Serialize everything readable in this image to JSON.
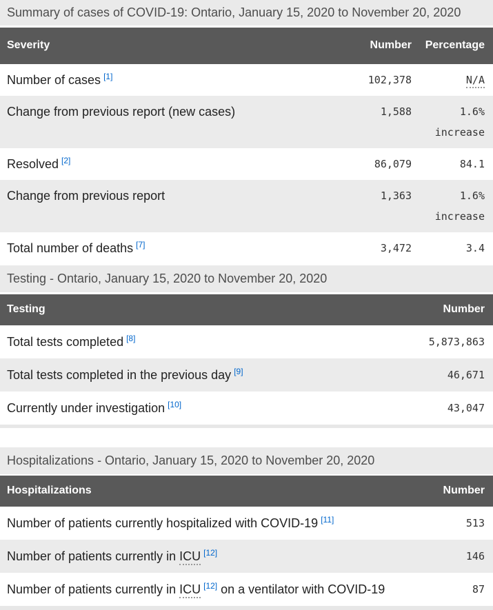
{
  "colors": {
    "table_header_bg": "#595959",
    "caption_bg": "#eaeaea",
    "zebra_row_bg": "#ebebeb",
    "footnote_link": "#0066cc",
    "label_text": "#222222",
    "number_text": "#333333"
  },
  "summary": {
    "caption": "Summary of cases of COVID-19: Ontario, January 15, 2020 to November 20, 2020",
    "columns": {
      "severity": "Severity",
      "number": "Number",
      "percentage": "Percentage"
    },
    "rows": [
      {
        "label": "Number of cases",
        "footnote": "[1]",
        "number": "102,378",
        "percentage": "N/A"
      },
      {
        "label": "Change from previous report (new cases)",
        "number": "1,588",
        "percentage": "1.6%",
        "percentage_note": "increase"
      },
      {
        "label": "Resolved",
        "footnote": "[2]",
        "number": "86,079",
        "percentage": "84.1"
      },
      {
        "label": "Change from previous report",
        "number": "1,363",
        "percentage": "1.6%",
        "percentage_note": "increase"
      },
      {
        "label": "Total number of deaths",
        "footnote": "[7]",
        "number": "3,472",
        "percentage": "3.4"
      }
    ]
  },
  "testing": {
    "caption": "Testing - Ontario, January 15, 2020 to November 20, 2020",
    "columns": {
      "testing": "Testing",
      "number": "Number"
    },
    "rows": [
      {
        "label": "Total tests completed",
        "footnote": "[8]",
        "number": "5,873,863"
      },
      {
        "label": "Total tests completed in the previous day",
        "footnote": "[9]",
        "number": "46,671"
      },
      {
        "label": "Currently under investigation",
        "footnote": "[10]",
        "number": "43,047"
      }
    ]
  },
  "hospitalizations": {
    "caption": "Hospitalizations - Ontario, January 15, 2020 to November 20, 2020",
    "columns": {
      "hospitalizations": "Hospitalizations",
      "number": "Number"
    },
    "rows": [
      {
        "label": "Number of patients currently hospitalized with COVID-19",
        "footnote": "[11]",
        "number": "513"
      },
      {
        "label_pre": "Number of patients currently in ",
        "abbr": "ICU",
        "footnote": "[12]",
        "number": "146"
      },
      {
        "label_pre": "Number of patients currently in ",
        "abbr": "ICU",
        "footnote": "[12]",
        "label_post": " on a ventilator with COVID-19",
        "number": "87"
      }
    ]
  }
}
